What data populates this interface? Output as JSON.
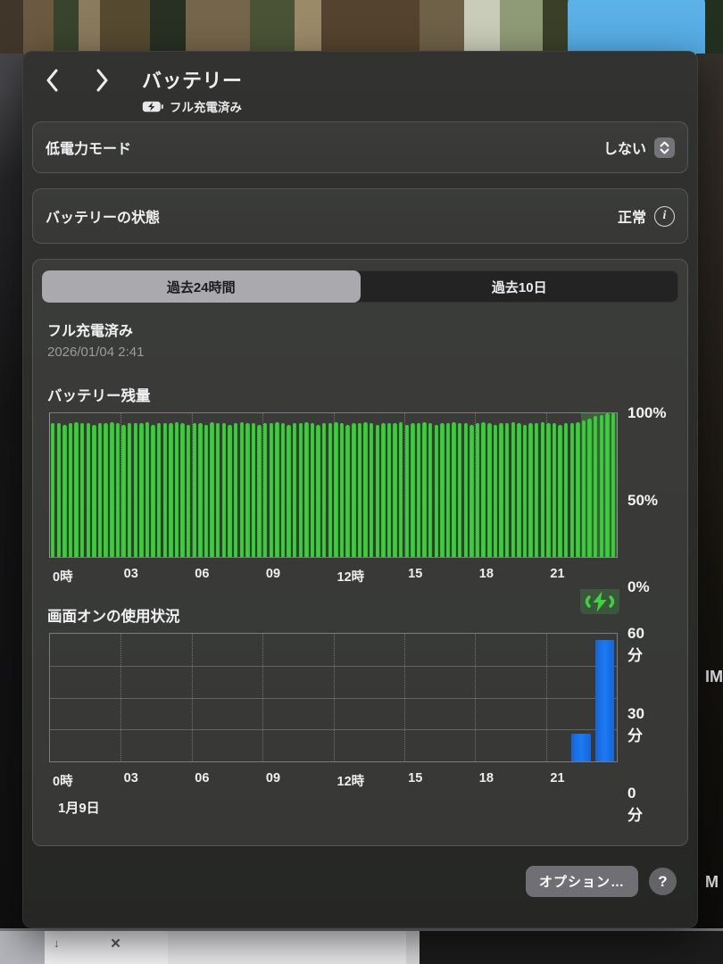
{
  "header": {
    "title": "バッテリー",
    "status_label": "フル充電済み"
  },
  "rows": {
    "low_power": {
      "label": "低電力モード",
      "value": "しない"
    },
    "health": {
      "label": "バッテリーの状態",
      "value": "正常",
      "info_glyph": "i"
    }
  },
  "tabs": [
    {
      "label": "過去24時間",
      "selected": true
    },
    {
      "label": "過去10日",
      "selected": false
    }
  ],
  "charge_status": {
    "title": "フル充電済み",
    "timestamp": "2026/01/04 2:41"
  },
  "chart_data": [
    {
      "type": "bar",
      "title": "バッテリー残量",
      "ylabel": "%",
      "ylim": [
        0,
        100
      ],
      "interval_minutes": 15,
      "bar_color": "#3ed43e",
      "x_tick_labels": [
        "0時",
        "03",
        "06",
        "09",
        "12時",
        "15",
        "18",
        "21"
      ],
      "y_tick_labels": [
        "100%",
        "50%",
        "0%"
      ],
      "charging_region": {
        "start_hour": 22.5,
        "end_hour": 24
      },
      "values": [
        93,
        93,
        92,
        93,
        94,
        93,
        93,
        92,
        93,
        93,
        94,
        93,
        92,
        93,
        93,
        93,
        94,
        92,
        93,
        93,
        93,
        94,
        93,
        92,
        93,
        93,
        92,
        94,
        93,
        93,
        92,
        93,
        94,
        93,
        93,
        92,
        93,
        93,
        94,
        93,
        92,
        93,
        93,
        94,
        93,
        92,
        93,
        93,
        94,
        93,
        92,
        93,
        93,
        94,
        93,
        92,
        93,
        93,
        93,
        94,
        92,
        93,
        93,
        94,
        93,
        92,
        93,
        93,
        94,
        93,
        93,
        92,
        93,
        94,
        93,
        92,
        93,
        93,
        94,
        93,
        92,
        93,
        93,
        94,
        93,
        93,
        92,
        93,
        93,
        94,
        95,
        96,
        98,
        99,
        100,
        100
      ]
    },
    {
      "type": "bar",
      "title": "画面オンの使用状況",
      "ylabel": "分",
      "ylim": [
        0,
        60
      ],
      "interval_minutes": 60,
      "bar_color": "#1d79f2",
      "x_tick_labels": [
        "0時",
        "03",
        "06",
        "09",
        "12時",
        "15",
        "18",
        "21"
      ],
      "y_tick_labels": [
        "60分",
        "30分",
        "0分"
      ],
      "date_label": "1月9日",
      "values": [
        0,
        0,
        0,
        0,
        0,
        0,
        0,
        0,
        0,
        0,
        0,
        0,
        0,
        0,
        0,
        0,
        0,
        0,
        0,
        0,
        0,
        0,
        13,
        57
      ]
    }
  ],
  "footer": {
    "options_label": "オプション…",
    "help_label": "?"
  },
  "background": {
    "letters": [
      "IM",
      "M"
    ],
    "close_glyph": "×",
    "arrow_glyph": "↓"
  }
}
